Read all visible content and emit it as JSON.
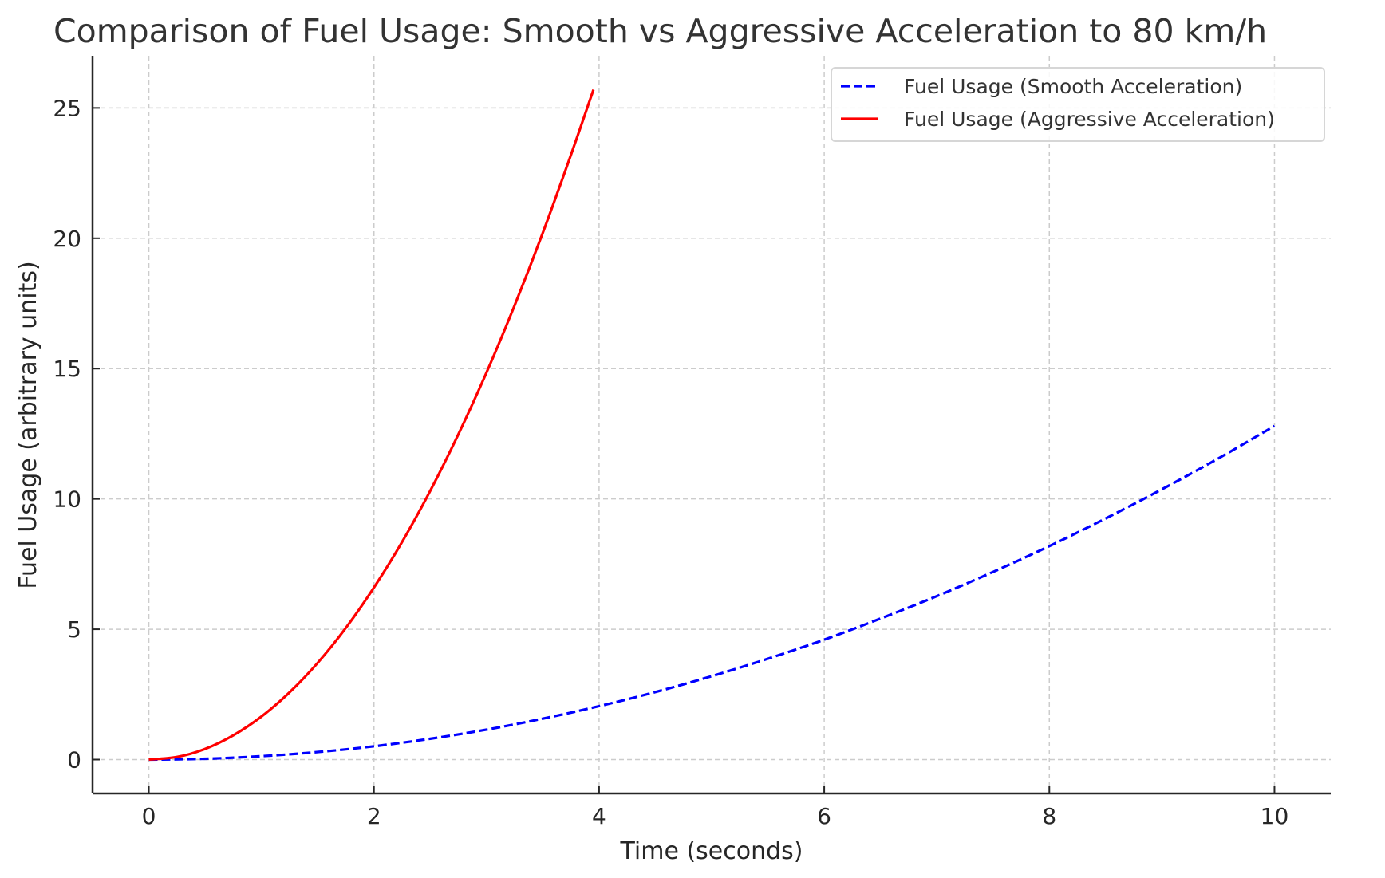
{
  "chart_data": {
    "type": "line",
    "title": "Comparison of Fuel Usage: Smooth vs Aggressive Acceleration to 80 km/h",
    "xlabel": "Time (seconds)",
    "ylabel": "Fuel Usage (arbitrary units)",
    "xlim": [
      -0.5,
      10.5
    ],
    "ylim": [
      -1.3,
      27.0
    ],
    "xticks": [
      0,
      2,
      4,
      6,
      8,
      10
    ],
    "yticks": [
      0,
      5,
      10,
      15,
      20,
      25
    ],
    "xtick_labels": [
      "0",
      "2",
      "4",
      "6",
      "8",
      "10"
    ],
    "ytick_labels": [
      "0",
      "5",
      "10",
      "15",
      "20",
      "25"
    ],
    "grid": true,
    "legend_position": "top-right",
    "series": [
      {
        "name": "Fuel Usage (Smooth Acceleration)",
        "color": "#0000ff",
        "style": "dashed",
        "x": [
          0,
          0.5,
          1,
          1.5,
          2,
          2.5,
          3,
          3.5,
          4,
          4.5,
          5,
          5.5,
          6,
          6.5,
          7,
          7.5,
          8,
          8.5,
          9,
          9.5,
          10
        ],
        "y": [
          0,
          0.03,
          0.13,
          0.29,
          0.51,
          0.8,
          1.15,
          1.57,
          2.05,
          2.59,
          3.2,
          3.87,
          4.6,
          5.41,
          6.27,
          7.2,
          8.19,
          9.25,
          10.37,
          11.55,
          12.8
        ]
      },
      {
        "name": "Fuel Usage (Aggressive Acceleration)",
        "color": "#ff0000",
        "style": "solid",
        "x": [
          0,
          0.25,
          0.5,
          0.75,
          1,
          1.25,
          1.5,
          1.75,
          2,
          2.25,
          2.5,
          2.75,
          3,
          3.25,
          3.5,
          3.75,
          3.95
        ],
        "y": [
          0,
          0.1,
          0.41,
          0.93,
          1.65,
          2.58,
          3.71,
          5.05,
          6.6,
          8.35,
          10.31,
          12.48,
          14.85,
          17.43,
          20.21,
          23.2,
          25.7
        ]
      }
    ]
  }
}
